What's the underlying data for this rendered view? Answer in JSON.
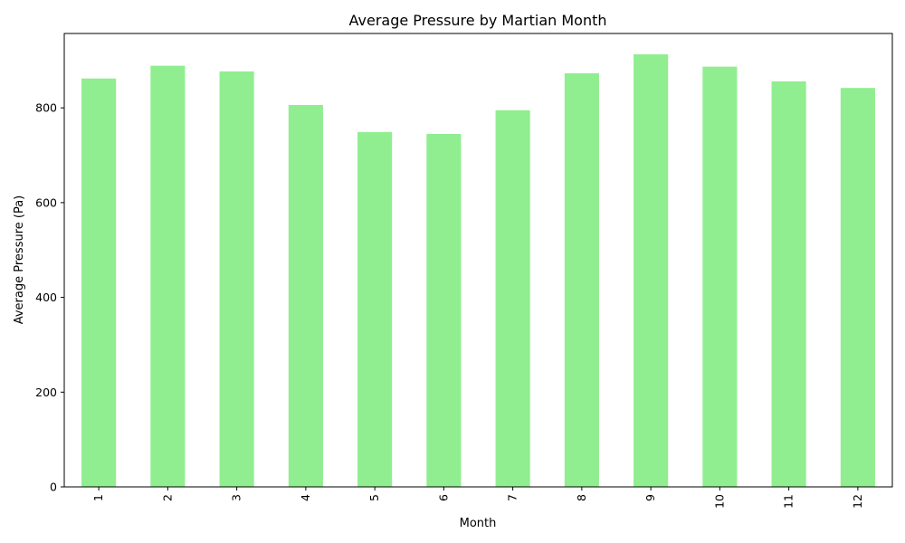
{
  "chart_data": {
    "type": "bar",
    "title": "Average Pressure by Martian Month",
    "xlabel": "Month",
    "ylabel": "Average Pressure (Pa)",
    "categories": [
      "1",
      "2",
      "3",
      "4",
      "5",
      "6",
      "7",
      "8",
      "9",
      "10",
      "11",
      "12"
    ],
    "values": [
      862,
      889,
      877,
      806,
      749,
      745,
      795,
      873,
      913,
      887,
      856,
      842
    ],
    "ylim": [
      0,
      957
    ],
    "yticks": [
      0,
      200,
      400,
      600,
      800
    ],
    "grid": false,
    "legend": "none",
    "bar_color": "#90ee90"
  }
}
